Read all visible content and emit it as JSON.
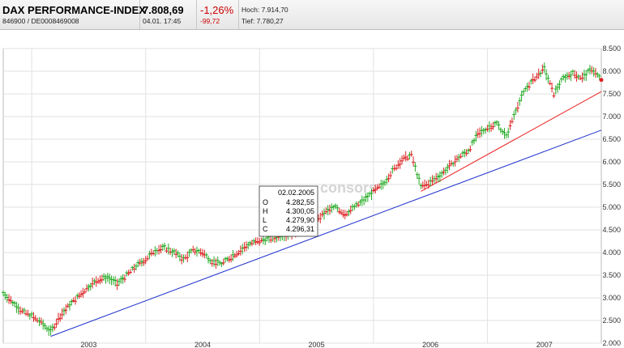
{
  "quote": {
    "name": "DAX PERFORMANCE-INDEX",
    "wkn_isin": "846900  /  DE0008469008",
    "last": "7.808,69",
    "datetime": "04.01. 17:45",
    "change_pct": "-1,26%",
    "change_abs": "-99,72",
    "high": "Hoch: 7.914,70",
    "low": "Tief: 7.780,27",
    "negative_color": "#cc0000"
  },
  "watermark": "consors",
  "chart_data": {
    "type": "line",
    "title": "",
    "xlabel": "",
    "ylabel": "",
    "x_ticks": [
      "2003",
      "2004",
      "2005",
      "2006",
      "2007"
    ],
    "y_ticks": [
      "2.000",
      "2.500",
      "3.000",
      "3.500",
      "4.000",
      "4.500",
      "5.000",
      "5.500",
      "6.000",
      "6.500",
      "7.000",
      "7.500",
      "8.000",
      "8.500"
    ],
    "xlim": [
      "2002-10",
      "2008-01"
    ],
    "ylim": [
      2000,
      8500
    ],
    "grid": true,
    "up_color": "#22aa22",
    "down_color": "#dd2222",
    "series": [
      {
        "values": [
          [
            "2002-10",
            3100
          ],
          [
            "2002-11",
            2900
          ],
          [
            "2002-12",
            2700
          ],
          [
            "2003-01",
            2600
          ],
          [
            "2003-02",
            2450
          ],
          [
            "2003-03",
            2250
          ],
          [
            "2003-04",
            2600
          ],
          [
            "2003-05",
            2850
          ],
          [
            "2003-06",
            3050
          ],
          [
            "2003-07",
            3250
          ],
          [
            "2003-08",
            3400
          ],
          [
            "2003-09",
            3450
          ],
          [
            "2003-10",
            3300
          ],
          [
            "2003-11",
            3500
          ],
          [
            "2003-12",
            3700
          ],
          [
            "2004-01",
            3850
          ],
          [
            "2004-02",
            4050
          ],
          [
            "2004-03",
            4100
          ],
          [
            "2004-04",
            4000
          ],
          [
            "2004-05",
            3850
          ],
          [
            "2004-06",
            4050
          ],
          [
            "2004-07",
            4000
          ],
          [
            "2004-08",
            3800
          ],
          [
            "2004-09",
            3750
          ],
          [
            "2004-10",
            3900
          ],
          [
            "2004-11",
            4050
          ],
          [
            "2004-12",
            4200
          ],
          [
            "2005-01",
            4250
          ],
          [
            "2005-02",
            4300
          ],
          [
            "2005-03",
            4350
          ],
          [
            "2005-04",
            4400
          ],
          [
            "2005-05",
            4450
          ],
          [
            "2005-06",
            4550
          ],
          [
            "2005-07",
            4700
          ],
          [
            "2005-08",
            4900
          ],
          [
            "2005-09",
            5000
          ],
          [
            "2005-10",
            4850
          ],
          [
            "2005-11",
            5000
          ],
          [
            "2005-12",
            5150
          ],
          [
            "2006-01",
            5350
          ],
          [
            "2006-02",
            5500
          ],
          [
            "2006-03",
            5800
          ],
          [
            "2006-04",
            6050
          ],
          [
            "2006-05",
            6150
          ],
          [
            "2006-06",
            5450
          ],
          [
            "2006-07",
            5550
          ],
          [
            "2006-08",
            5700
          ],
          [
            "2006-09",
            5900
          ],
          [
            "2006-10",
            6100
          ],
          [
            "2006-11",
            6250
          ],
          [
            "2006-12",
            6600
          ],
          [
            "2007-01",
            6750
          ],
          [
            "2007-02",
            6850
          ],
          [
            "2007-03",
            6550
          ],
          [
            "2007-04",
            7150
          ],
          [
            "2007-05",
            7600
          ],
          [
            "2007-06",
            7850
          ],
          [
            "2007-07",
            8050
          ],
          [
            "2007-08",
            7500
          ],
          [
            "2007-09",
            7850
          ],
          [
            "2007-10",
            7950
          ],
          [
            "2007-11",
            7850
          ],
          [
            "2007-12",
            8050
          ],
          [
            "2008-01",
            7808
          ]
        ]
      }
    ],
    "trendlines": [
      {
        "color": "#2233cc",
        "points": [
          [
            "2003-03",
            2150
          ],
          [
            "2008-01",
            6700
          ]
        ]
      },
      {
        "color": "#ee2222",
        "points": [
          [
            "2006-06",
            5350
          ],
          [
            "2008-01",
            7550
          ]
        ]
      }
    ],
    "tooltip": {
      "date": "02.02.2005",
      "rows": [
        {
          "label": "O",
          "value": "4.282,55"
        },
        {
          "label": "H",
          "value": "4.300,05"
        },
        {
          "label": "L",
          "value": "4.279,90"
        },
        {
          "label": "C",
          "value": "4.296,31"
        }
      ]
    }
  }
}
